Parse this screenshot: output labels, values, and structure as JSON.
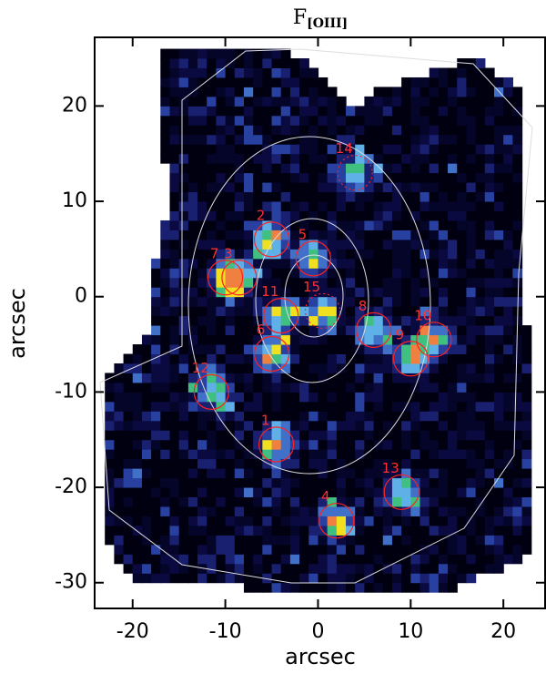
{
  "chart_data": {
    "type": "region-map",
    "title": {
      "main": "F",
      "subscript": "[OIII]"
    },
    "x_label": "arcsec",
    "y_label": "arcsec",
    "xlim": [
      -24.1,
      24.5
    ],
    "ylim": [
      -32.7,
      27.2
    ],
    "xticks": [
      -20,
      -10,
      0,
      10,
      20
    ],
    "yticks": [
      -30,
      -20,
      -10,
      0,
      10,
      20
    ],
    "regions": {
      "color": "#ff2020",
      "labels": [
        "1",
        "2",
        "3",
        "4",
        "5",
        "6",
        "7",
        "8",
        "9",
        "10",
        "11",
        "12",
        "13",
        "14",
        "15"
      ],
      "x": [
        -4.5,
        -5,
        -8.5,
        2,
        -0.5,
        -5,
        -10,
        6,
        10,
        12.5,
        -4,
        -11.5,
        9,
        4,
        0.5
      ],
      "y": [
        -15.5,
        6,
        2,
        -23.5,
        4,
        -6,
        2,
        -3.5,
        -6.5,
        -4.5,
        -2,
        -10,
        -20.5,
        13,
        -1.5
      ]
    }
  }
}
